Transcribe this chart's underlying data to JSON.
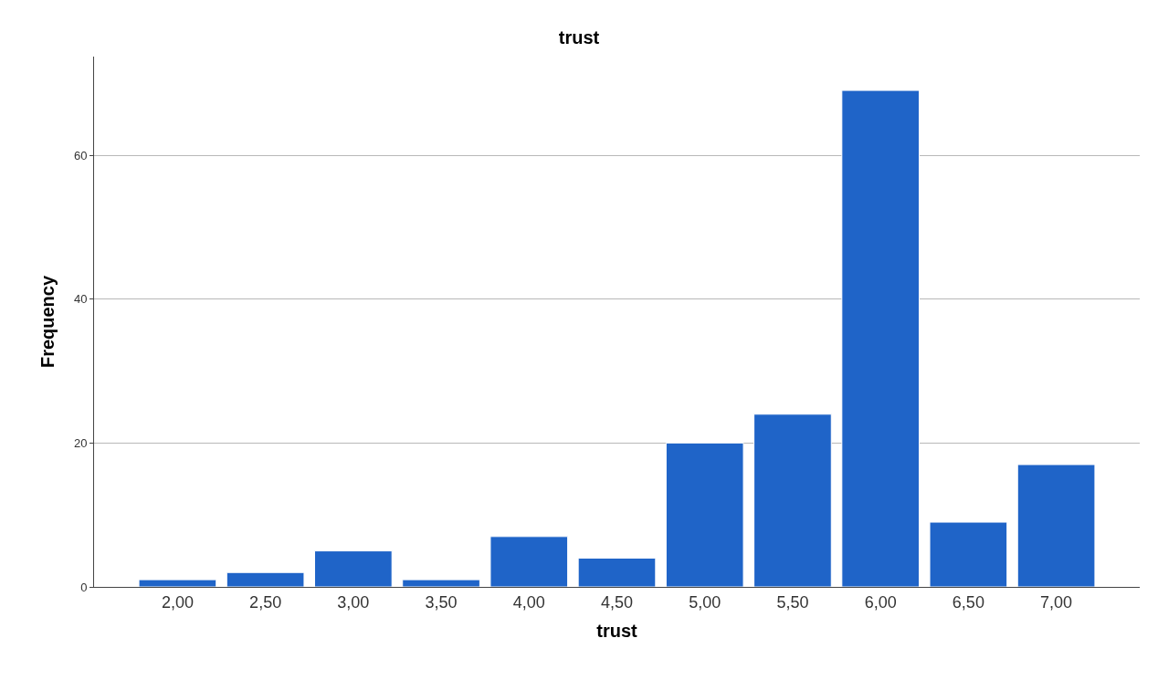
{
  "chart_data": {
    "type": "bar",
    "title": "trust",
    "xlabel": "trust",
    "ylabel": "Frequency",
    "categories": [
      "2,00",
      "2,50",
      "3,00",
      "3,50",
      "4,00",
      "4,50",
      "5,00",
      "5,50",
      "6,00",
      "6,50",
      "7,00"
    ],
    "values": [
      1,
      2,
      5,
      1,
      7,
      4,
      20,
      24,
      69,
      9,
      17
    ],
    "color": "#1f64c8",
    "ylim": [
      0,
      73.7
    ],
    "yticks": [
      0,
      20,
      40,
      60
    ],
    "grid": "y"
  }
}
